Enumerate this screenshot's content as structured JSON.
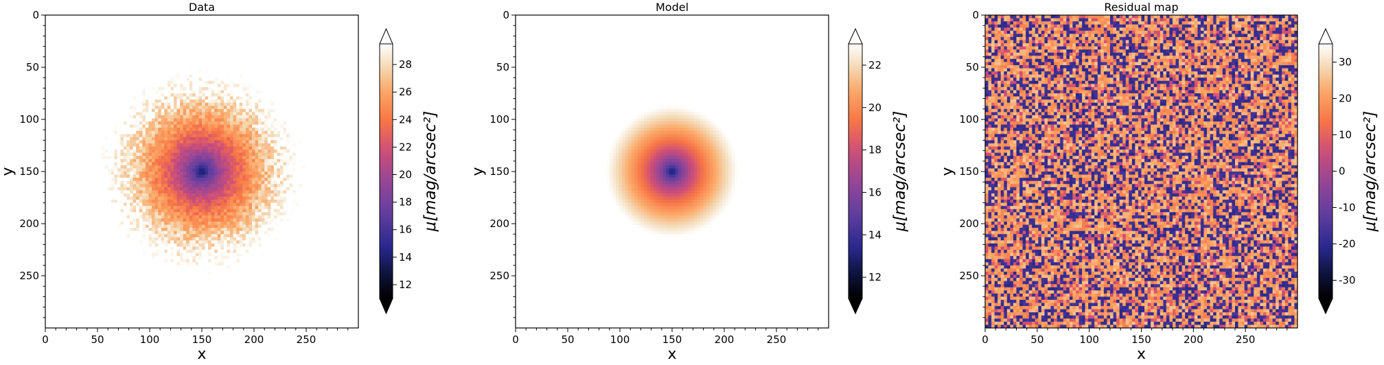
{
  "chart_data": [
    {
      "type": "heatmap",
      "title": "Data",
      "xlabel": "x",
      "ylabel": "y",
      "xlim": [
        0,
        300
      ],
      "ylim": [
        300,
        0
      ],
      "x_ticks": [
        0,
        50,
        100,
        150,
        200,
        250
      ],
      "y_ticks": [
        0,
        50,
        100,
        150,
        200,
        250
      ],
      "grid": false,
      "center": [
        150,
        150
      ],
      "image_kind": "noisy-profile",
      "colorbar": {
        "label": "μ[mag/arcsec²]",
        "range": [
          11,
          29.5
        ],
        "ticks": [
          12,
          14,
          16,
          18,
          20,
          22,
          24,
          26,
          28
        ],
        "extend": "both",
        "colormap": "cmr.torch"
      }
    },
    {
      "type": "heatmap",
      "title": "Model",
      "xlabel": "x",
      "ylabel": "y",
      "xlim": [
        0,
        300
      ],
      "ylim": [
        300,
        0
      ],
      "x_ticks": [
        0,
        50,
        100,
        150,
        200,
        250
      ],
      "y_ticks": [
        0,
        50,
        100,
        150,
        200,
        250
      ],
      "grid": false,
      "center": [
        150,
        150
      ],
      "image_kind": "smooth-profile",
      "colorbar": {
        "label": "μ[mag/arcsec²]",
        "range": [
          11,
          23
        ],
        "ticks": [
          12,
          14,
          16,
          18,
          20,
          22
        ],
        "extend": "both",
        "colormap": "cmr.torch"
      }
    },
    {
      "type": "heatmap",
      "title": "Residual map",
      "xlabel": "x",
      "ylabel": "y",
      "xlim": [
        0,
        300
      ],
      "ylim": [
        300,
        0
      ],
      "x_ticks": [
        0,
        50,
        100,
        150,
        200,
        250
      ],
      "y_ticks": [
        0,
        50,
        100,
        150,
        200,
        250
      ],
      "grid": false,
      "image_kind": "noise",
      "colorbar": {
        "label": "μ[mag/arcsec²]",
        "range": [
          -35,
          35
        ],
        "ticks": [
          -30,
          -20,
          -10,
          0,
          10,
          20,
          30
        ],
        "extend": "both",
        "colormap": "cmr.torch"
      }
    }
  ]
}
